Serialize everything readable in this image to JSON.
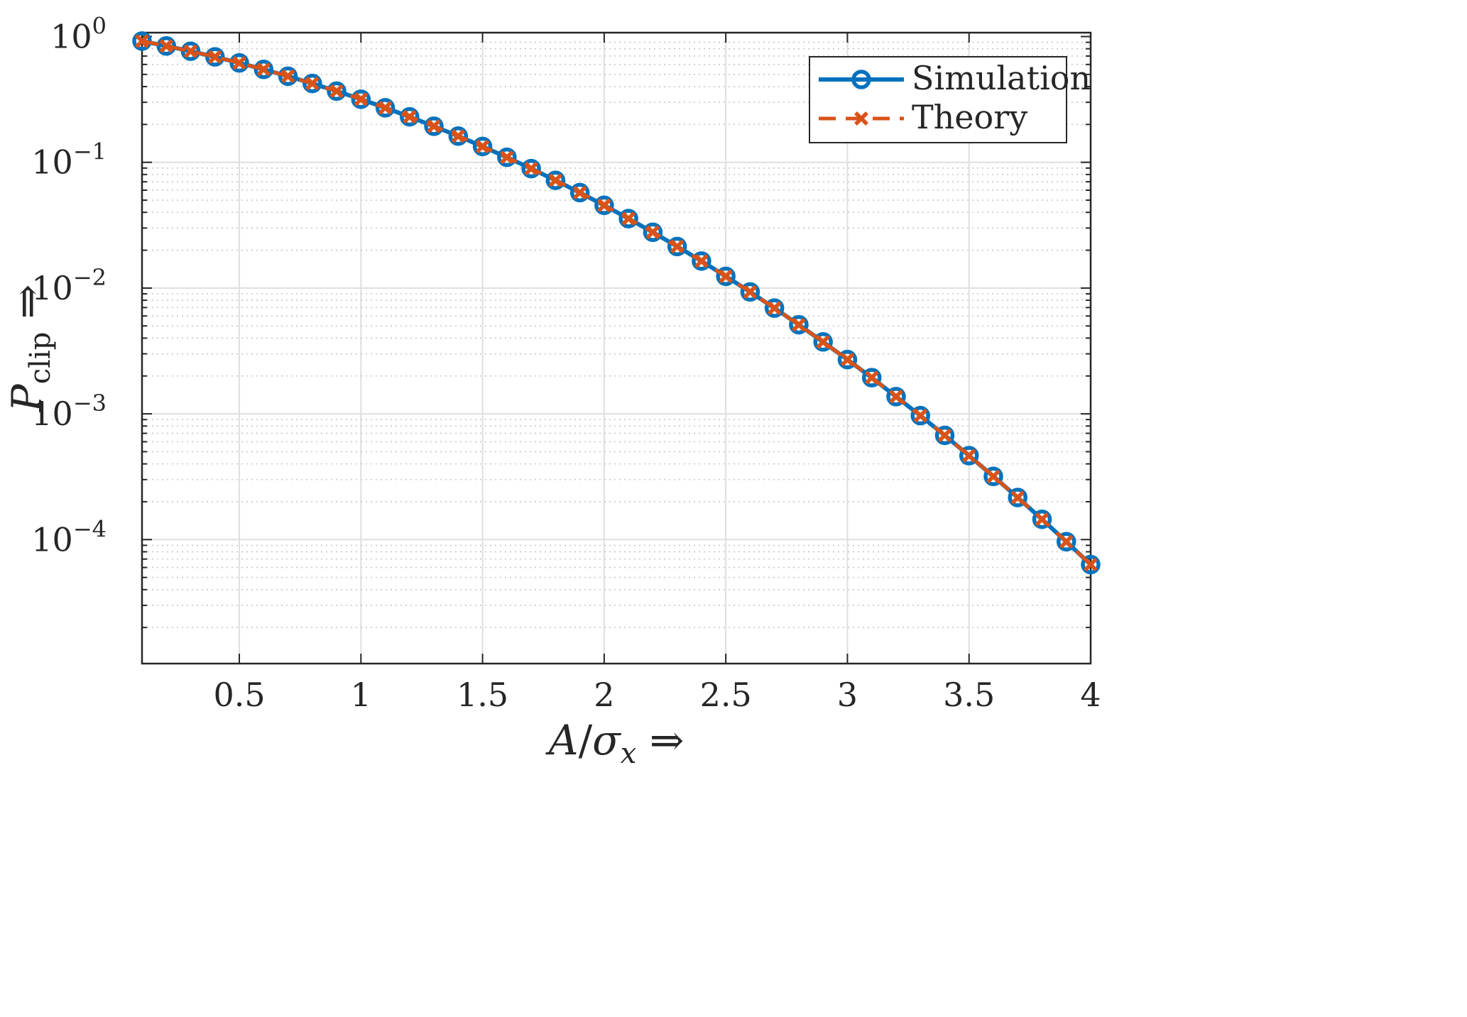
{
  "chart_data": {
    "type": "line",
    "xlabel": "A/σx ⇒",
    "ylabel": "Pclip ⇒",
    "xlim": [
      0.1,
      4
    ],
    "ylim": [
      1e-05,
      1
    ],
    "yscale": "log",
    "grid": true,
    "legend_position": "top-right",
    "x_ticks": [
      "0.5",
      "1",
      "1.5",
      "2",
      "2.5",
      "3",
      "3.5",
      "4"
    ],
    "y_ticks": [
      {
        "base": "10",
        "exp": "0"
      },
      {
        "base": "10",
        "exp": "−1"
      },
      {
        "base": "10",
        "exp": "−2"
      },
      {
        "base": "10",
        "exp": "−3"
      },
      {
        "base": "10",
        "exp": "−4"
      }
    ],
    "x": [
      0.1,
      0.2,
      0.3,
      0.4,
      0.5,
      0.6,
      0.7,
      0.8,
      0.9,
      1.0,
      1.1,
      1.2,
      1.3,
      1.4,
      1.5,
      1.6,
      1.7,
      1.8,
      1.9,
      2.0,
      2.1,
      2.2,
      2.3,
      2.4,
      2.5,
      2.6,
      2.7,
      2.8,
      2.9,
      3.0,
      3.1,
      3.2,
      3.3,
      3.4,
      3.5,
      3.6,
      3.7,
      3.8,
      3.9,
      4.0
    ],
    "series": [
      {
        "name": "Simulation",
        "color": "#0072BD",
        "marker": "circle",
        "line": "solid",
        "values": [
          0.9203,
          0.8415,
          0.7642,
          0.6892,
          0.6171,
          0.5485,
          0.4839,
          0.4237,
          0.3681,
          0.3173,
          0.2713,
          0.2301,
          0.1936,
          0.1615,
          0.1336,
          0.1096,
          0.0891,
          0.0719,
          0.0574,
          0.0455,
          0.0357,
          0.0278,
          0.0214,
          0.0164,
          0.0124,
          0.00932,
          0.00693,
          0.00511,
          0.00373,
          0.0027,
          0.00194,
          0.00137,
          0.000967,
          0.000674,
          0.000465,
          0.000318,
          0.000216,
          0.000145,
          9.62e-05,
          6.33e-05
        ]
      },
      {
        "name": "Theory",
        "color": "#D95319",
        "marker": "x",
        "line": "dashed",
        "values": [
          0.9203,
          0.8415,
          0.7642,
          0.6892,
          0.6171,
          0.5485,
          0.4839,
          0.4237,
          0.3681,
          0.3173,
          0.2713,
          0.2301,
          0.1936,
          0.1615,
          0.1336,
          0.1096,
          0.0891,
          0.0719,
          0.0574,
          0.0455,
          0.0357,
          0.0278,
          0.0214,
          0.0164,
          0.0124,
          0.00932,
          0.00693,
          0.00511,
          0.00373,
          0.0027,
          0.00194,
          0.00137,
          0.000967,
          0.000674,
          0.000465,
          0.000318,
          0.000216,
          0.000145,
          9.62e-05,
          6.33e-05
        ]
      }
    ]
  }
}
